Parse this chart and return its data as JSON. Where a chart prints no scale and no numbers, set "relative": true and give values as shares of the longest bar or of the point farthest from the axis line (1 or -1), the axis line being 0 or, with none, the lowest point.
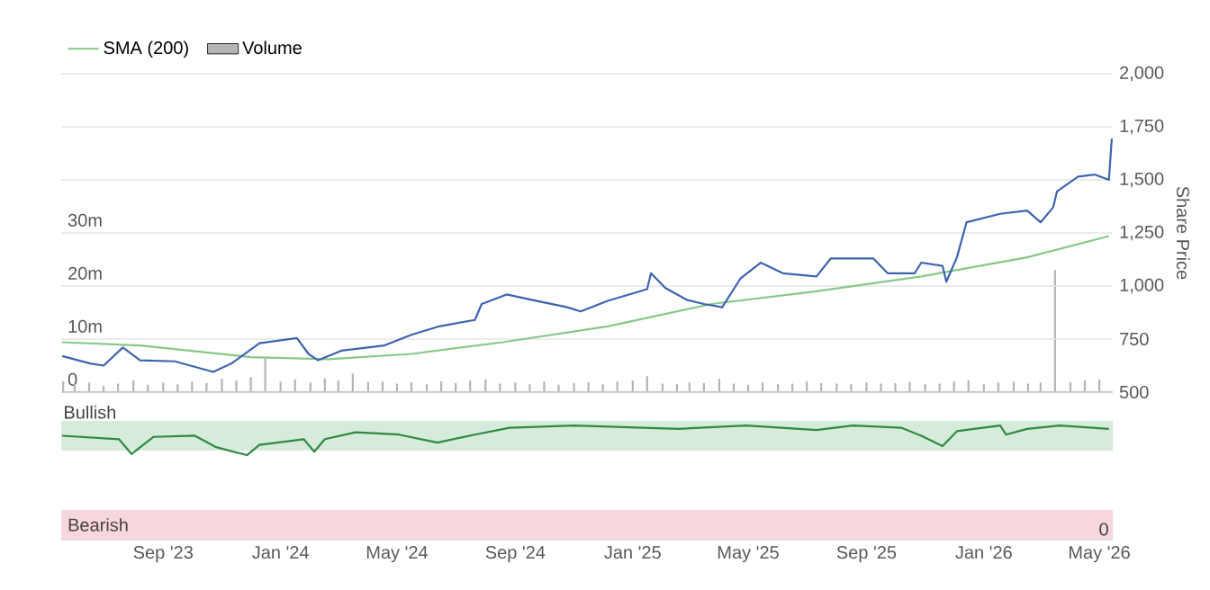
{
  "chart_data": [
    {
      "type": "line",
      "ylabel": "Share Price",
      "legend": "top left",
      "grid": "y",
      "tick_labels": "y",
      "xlim": [
        "2023-05-18",
        "2026-05-15"
      ],
      "ylim": [
        500,
        2000
      ],
      "yticks": [
        500,
        750,
        {
          "value": 1000,
          "label": "1,000"
        },
        {
          "value": 1250,
          "label": "1,250"
        },
        {
          "value": 1500,
          "label": "1,500"
        },
        {
          "value": 1750,
          "label": "1,750"
        },
        {
          "value": 2000,
          "label": "2,000"
        }
      ],
      "y2lim": [
        0,
        60
      ],
      "y2ticks": [
        0,
        {
          "value": 10,
          "label": "10m"
        },
        {
          "value": 20,
          "label": "20m"
        },
        {
          "value": 30,
          "label": "30m"
        }
      ],
      "series": [
        {
          "name": "SMA (200)",
          "color": "#86c986",
          "x": [
            "2023-05-19",
            "2023-08-08",
            "2023-12-01",
            "2024-02-20",
            "2024-05-16",
            "2024-08-19",
            "2024-12-06",
            "2025-03-24",
            "2025-07-11",
            "2025-10-28",
            "2026-02-15",
            "2026-05-11"
          ],
          "values": [
            735,
            720,
            665,
            655,
            680,
            735,
            810,
            915,
            975,
            1045,
            1135,
            1235
          ]
        },
        {
          "type": "bar",
          "name": "Volume",
          "axis": "y2",
          "color": "#b4b4b4",
          "x": [
            "2023-05-20",
            "2023-06-01",
            "2023-06-16",
            "2023-07-01",
            "2023-07-16",
            "2023-08-01",
            "2023-08-16",
            "2023-09-01",
            "2023-09-16",
            "2023-10-01",
            "2023-10-16",
            "2023-11-01",
            "2023-11-16",
            "2023-12-01",
            "2023-12-16",
            "2024-01-01",
            "2024-01-16",
            "2024-02-01",
            "2024-02-16",
            "2024-03-01",
            "2024-03-16",
            "2024-04-01",
            "2024-04-16",
            "2024-05-01",
            "2024-05-16",
            "2024-06-01",
            "2024-06-16",
            "2024-07-01",
            "2024-07-16",
            "2024-08-01",
            "2024-08-16",
            "2024-09-01",
            "2024-09-16",
            "2024-10-01",
            "2024-10-16",
            "2024-11-01",
            "2024-11-16",
            "2024-12-01",
            "2024-12-16",
            "2025-01-01",
            "2025-01-16",
            "2025-02-01",
            "2025-02-16",
            "2025-03-01",
            "2025-03-16",
            "2025-04-01",
            "2025-04-16",
            "2025-05-01",
            "2025-05-16",
            "2025-06-01",
            "2025-06-16",
            "2025-07-01",
            "2025-07-16",
            "2025-08-01",
            "2025-08-16",
            "2025-09-01",
            "2025-09-16",
            "2025-10-01",
            "2025-10-16",
            "2025-11-01",
            "2025-11-16",
            "2025-12-01",
            "2025-12-16",
            "2026-01-01",
            "2026-01-16",
            "2026-02-01",
            "2026-02-16",
            "2026-03-01",
            "2026-03-16",
            "2026-04-01",
            "2026-04-16",
            "2026-05-01"
          ],
          "values": [
            2.0,
            1.5,
            1.8,
            1.2,
            1.6,
            2.2,
            1.4,
            1.8,
            1.5,
            2.0,
            1.7,
            2.5,
            2.2,
            2.8,
            6.4,
            2.0,
            2.4,
            1.8,
            2.6,
            2.2,
            3.5,
            1.9,
            2.0,
            1.6,
            1.8,
            1.5,
            2.0,
            1.7,
            2.2,
            2.4,
            1.6,
            1.8,
            1.5,
            2.0,
            1.4,
            1.7,
            1.8,
            1.5,
            2.0,
            2.2,
            3.0,
            1.6,
            1.5,
            1.8,
            1.7,
            2.5,
            1.6,
            1.4,
            1.8,
            1.5,
            1.6,
            2.0,
            1.7,
            1.6,
            1.5,
            1.8,
            1.6,
            1.7,
            1.9,
            1.5,
            1.6,
            2.0,
            2.2,
            1.5,
            1.8,
            2.0,
            1.6,
            1.8,
            23.0,
            1.9,
            2.2,
            2.4
          ]
        },
        {
          "color": "#3e64b0",
          "x": [
            "2023-05-19",
            "2023-06-17",
            "2023-07-01",
            "2023-07-21",
            "2023-08-08",
            "2023-09-13",
            "2023-10-23",
            "2023-11-11",
            "2023-12-10",
            "2024-01-18",
            "2024-01-30",
            "2024-02-09",
            "2024-03-04",
            "2024-04-18",
            "2024-05-16",
            "2024-06-14",
            "2024-07-21",
            "2024-07-28",
            "2024-08-23",
            "2024-09-18",
            "2024-10-25",
            "2024-11-08",
            "2024-12-06",
            "2025-01-16",
            "2025-01-20",
            "2025-02-04",
            "2025-02-26",
            "2025-03-16",
            "2025-04-04",
            "2025-04-23",
            "2025-05-14",
            "2025-06-06",
            "2025-07-11",
            "2025-07-26",
            "2025-09-08",
            "2025-09-23",
            "2025-10-21",
            "2025-10-28",
            "2025-11-19",
            "2025-11-23",
            "2025-12-04",
            "2025-12-14",
            "2026-01-18",
            "2026-02-15",
            "2026-03-01",
            "2026-03-14",
            "2026-03-18",
            "2026-04-09",
            "2026-04-26",
            "2026-05-11",
            "2026-05-14"
          ],
          "values": [
            670,
            635,
            625,
            710,
            650,
            645,
            595,
            635,
            730,
            755,
            680,
            650,
            695,
            720,
            770,
            810,
            840,
            915,
            960,
            935,
            900,
            880,
            930,
            985,
            1060,
            990,
            935,
            915,
            900,
            1035,
            1110,
            1060,
            1045,
            1130,
            1130,
            1060,
            1060,
            1110,
            1095,
            1020,
            1135,
            1300,
            1340,
            1355,
            1300,
            1370,
            1445,
            1515,
            1525,
            1500,
            1695
          ]
        }
      ]
    },
    {
      "type": "line",
      "relative": true,
      "xlim": [
        "2023-05-18",
        "2026-05-15"
      ],
      "xticks": [
        {
          "value": "2023-09-01",
          "label": "Sep '23"
        },
        {
          "value": "2024-01-01",
          "label": "Jan '24"
        },
        {
          "value": "2024-05-01",
          "label": "May '24"
        },
        {
          "value": "2024-09-01",
          "label": "Sep '24"
        },
        {
          "value": "2025-01-01",
          "label": "Jan '25"
        },
        {
          "value": "2025-05-01",
          "label": "May '25"
        },
        {
          "value": "2025-09-01",
          "label": "Sep '25"
        },
        {
          "value": "2026-01-01",
          "label": "Jan '26"
        },
        {
          "value": "2026-05-01",
          "label": "May '26"
        }
      ],
      "annotations": [
        "0"
      ],
      "bands": [
        {
          "axis": "y",
          "from": 0.78,
          "to": 1.04,
          "label": "Bullish",
          "color": "#d6ebdc"
        },
        {
          "axis": "y",
          "from": 0,
          "to": 0.26,
          "label": "Bearish",
          "color": "#f6d7dd"
        }
      ],
      "series": [
        {
          "color": "#2f8a3f",
          "x": [
            "2023-05-19",
            "2023-07-17",
            "2023-07-30",
            "2023-08-22",
            "2023-10-04",
            "2023-10-26",
            "2023-11-27",
            "2023-12-10",
            "2024-01-25",
            "2024-02-05",
            "2024-02-16",
            "2024-03-19",
            "2024-05-03",
            "2024-06-12",
            "2024-07-21",
            "2024-08-26",
            "2024-11-01",
            "2025-02-18",
            "2025-04-29",
            "2025-07-11",
            "2025-08-18",
            "2025-10-07",
            "2025-10-28",
            "2025-11-19",
            "2025-12-04",
            "2026-01-18",
            "2026-01-24",
            "2026-02-15",
            "2026-03-21",
            "2026-05-11"
          ],
          "values": [
            0.91,
            0.88,
            0.75,
            0.9,
            0.91,
            0.81,
            0.74,
            0.83,
            0.88,
            0.77,
            0.88,
            0.94,
            0.92,
            0.85,
            0.92,
            0.98,
            1,
            0.97,
            1,
            0.96,
            1,
            0.98,
            0.91,
            0.82,
            0.95,
            1,
            0.92,
            0.97,
            1,
            0.97
          ]
        }
      ]
    }
  ]
}
